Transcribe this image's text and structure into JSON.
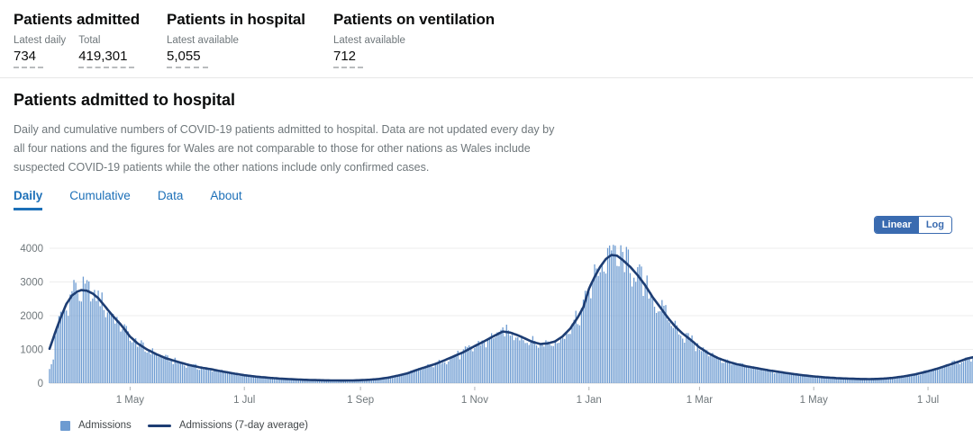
{
  "stats": [
    {
      "title": "Patients admitted",
      "metrics": [
        {
          "label": "Latest daily",
          "value": "734"
        },
        {
          "label": "Total",
          "value": "419,301"
        }
      ]
    },
    {
      "title": "Patients in hospital",
      "metrics": [
        {
          "label": "Latest available",
          "value": "5,055"
        }
      ]
    },
    {
      "title": "Patients on ventilation",
      "metrics": [
        {
          "label": "Latest available",
          "value": "712"
        }
      ]
    }
  ],
  "section": {
    "heading": "Patients admitted to hospital",
    "description": "Daily and cumulative numbers of COVID-19 patients admitted to hospital. Data are not updated every day by\nall four nations and the figures for Wales are not comparable to those for other nations as Wales include\nsuspected COVID-19 patients while the other nations include only confirmed cases."
  },
  "tabs": {
    "items": [
      {
        "label": "Daily",
        "active": true
      },
      {
        "label": "Cumulative",
        "active": false
      },
      {
        "label": "Data",
        "active": false
      },
      {
        "label": "About",
        "active": false
      }
    ]
  },
  "scale_toggle": {
    "linear_label": "Linear",
    "log_label": "Log",
    "selected": "Linear"
  },
  "colors": {
    "tab_blue": "#1d70b8",
    "toggle_blue": "#3a6bb0",
    "bar_blue": "#6d9bd1",
    "line_navy": "#1d3d73",
    "axis_text": "#6f777b"
  },
  "chart_data": {
    "type": "bar",
    "title": "Patients admitted to hospital (Daily)",
    "x_start_date": "2020-03-19",
    "total_days": 494,
    "ylim": [
      0,
      4000
    ],
    "y_ticks": [
      0,
      1000,
      2000,
      3000,
      4000
    ],
    "x_ticks": [
      {
        "label": "1 May",
        "day": 43
      },
      {
        "label": "1 Jul",
        "day": 104
      },
      {
        "label": "1 Sep",
        "day": 166
      },
      {
        "label": "1 Nov",
        "day": 227
      },
      {
        "label": "1 Jan",
        "day": 288
      },
      {
        "label": "1 Mar",
        "day": 347
      },
      {
        "label": "1 May",
        "day": 408
      },
      {
        "label": "1 Jul",
        "day": 469
      }
    ],
    "legend": [
      "Admissions",
      "Admissions (7-day average)"
    ],
    "series": [
      {
        "name": "Admissions",
        "type": "bar",
        "color": "#6d9bd1",
        "derived_from": "avg_points_with_jitter",
        "jitter": {
          "amplitude": 0.26,
          "weekend_dip": -0.09,
          "cap": 4100
        },
        "overrides": {
          "0": 420,
          "1": 560,
          "2": 700,
          "13": 3060,
          "299": 4080
        }
      },
      {
        "name": "Admissions (7-day average)",
        "type": "line",
        "color": "#1d3d73",
        "points": [
          [
            0,
            1020
          ],
          [
            3,
            1500
          ],
          [
            6,
            1950
          ],
          [
            9,
            2350
          ],
          [
            12,
            2600
          ],
          [
            15,
            2720
          ],
          [
            17,
            2760
          ],
          [
            20,
            2740
          ],
          [
            23,
            2660
          ],
          [
            26,
            2520
          ],
          [
            30,
            2250
          ],
          [
            34,
            1980
          ],
          [
            38,
            1740
          ],
          [
            43,
            1380
          ],
          [
            47,
            1180
          ],
          [
            52,
            1000
          ],
          [
            57,
            860
          ],
          [
            62,
            740
          ],
          [
            68,
            640
          ],
          [
            74,
            545
          ],
          [
            80,
            470
          ],
          [
            86,
            415
          ],
          [
            92,
            350
          ],
          [
            98,
            290
          ],
          [
            104,
            235
          ],
          [
            110,
            195
          ],
          [
            117,
            160
          ],
          [
            124,
            130
          ],
          [
            132,
            108
          ],
          [
            140,
            92
          ],
          [
            148,
            82
          ],
          [
            156,
            78
          ],
          [
            162,
            80
          ],
          [
            166,
            88
          ],
          [
            171,
            102
          ],
          [
            176,
            125
          ],
          [
            181,
            165
          ],
          [
            186,
            225
          ],
          [
            191,
            290
          ],
          [
            196,
            390
          ],
          [
            201,
            480
          ],
          [
            206,
            570
          ],
          [
            211,
            680
          ],
          [
            216,
            800
          ],
          [
            221,
            920
          ],
          [
            227,
            1100
          ],
          [
            232,
            1240
          ],
          [
            237,
            1390
          ],
          [
            242,
            1530
          ],
          [
            246,
            1500
          ],
          [
            250,
            1420
          ],
          [
            254,
            1320
          ],
          [
            258,
            1220
          ],
          [
            262,
            1160
          ],
          [
            266,
            1180
          ],
          [
            270,
            1240
          ],
          [
            274,
            1390
          ],
          [
            278,
            1620
          ],
          [
            282,
            1950
          ],
          [
            285,
            2250
          ],
          [
            288,
            2800
          ],
          [
            291,
            3150
          ],
          [
            294,
            3450
          ],
          [
            297,
            3680
          ],
          [
            300,
            3800
          ],
          [
            303,
            3780
          ],
          [
            306,
            3650
          ],
          [
            310,
            3450
          ],
          [
            314,
            3200
          ],
          [
            318,
            2900
          ],
          [
            322,
            2550
          ],
          [
            326,
            2250
          ],
          [
            330,
            1950
          ],
          [
            334,
            1680
          ],
          [
            338,
            1470
          ],
          [
            342,
            1300
          ],
          [
            347,
            1060
          ],
          [
            352,
            880
          ],
          [
            357,
            740
          ],
          [
            362,
            640
          ],
          [
            367,
            560
          ],
          [
            372,
            500
          ],
          [
            378,
            440
          ],
          [
            384,
            380
          ],
          [
            390,
            330
          ],
          [
            396,
            280
          ],
          [
            402,
            235
          ],
          [
            408,
            200
          ],
          [
            414,
            172
          ],
          [
            420,
            150
          ],
          [
            426,
            135
          ],
          [
            432,
            124
          ],
          [
            438,
            120
          ],
          [
            444,
            130
          ],
          [
            450,
            155
          ],
          [
            456,
            200
          ],
          [
            462,
            260
          ],
          [
            468,
            340
          ],
          [
            474,
            430
          ],
          [
            480,
            540
          ],
          [
            486,
            650
          ],
          [
            490,
            730
          ],
          [
            494,
            780
          ]
        ]
      }
    ]
  }
}
